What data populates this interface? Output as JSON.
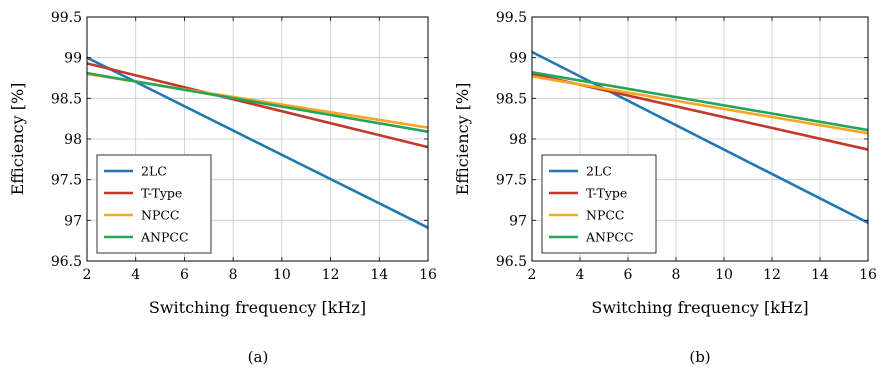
{
  "chart_data": [
    {
      "type": "line",
      "caption": "(a)",
      "xlabel": "Switching frequency [kHz]",
      "ylabel": "Efficiency [%]",
      "xlim": [
        2,
        16
      ],
      "ylim": [
        96.5,
        99.5
      ],
      "xticks": [
        2,
        4,
        6,
        8,
        10,
        12,
        14,
        16
      ],
      "yticks": [
        96.5,
        97,
        97.5,
        98,
        98.5,
        99,
        99.5
      ],
      "ytick_labels": [
        "96.5",
        "97",
        "97.5",
        "98",
        "98.5",
        "99",
        "99.5"
      ],
      "grid": true,
      "legend": "bottom-left",
      "series": [
        {
          "name": "2LC",
          "color": "#1f77b4",
          "x": [
            2,
            16
          ],
          "y": [
            99.0,
            96.91
          ]
        },
        {
          "name": "T-Type",
          "color": "#c0392b",
          "x": [
            2,
            16
          ],
          "y": [
            98.93,
            97.9
          ]
        },
        {
          "name": "NPCC",
          "color": "#f5a623",
          "x": [
            2,
            16
          ],
          "y": [
            98.8,
            98.14
          ]
        },
        {
          "name": "ANPCC",
          "color": "#27a35a",
          "x": [
            2,
            16
          ],
          "y": [
            98.81,
            98.09
          ]
        }
      ]
    },
    {
      "type": "line",
      "caption": "(b)",
      "xlabel": "Switching frequency [kHz]",
      "ylabel": "Efficiency [%]",
      "xlim": [
        2,
        16
      ],
      "ylim": [
        96.5,
        99.5
      ],
      "xticks": [
        2,
        4,
        6,
        8,
        10,
        12,
        14,
        16
      ],
      "yticks": [
        96.5,
        97,
        97.5,
        98,
        98.5,
        99,
        99.5
      ],
      "ytick_labels": [
        "96.5",
        "97",
        "97.5",
        "98",
        "98.5",
        "99",
        "99.5"
      ],
      "grid": true,
      "legend": "bottom-left",
      "series": [
        {
          "name": "2LC",
          "color": "#1f77b4",
          "x": [
            2,
            16
          ],
          "y": [
            99.07,
            96.97
          ]
        },
        {
          "name": "T-Type",
          "color": "#c0392b",
          "x": [
            2,
            16
          ],
          "y": [
            98.8,
            97.87
          ]
        },
        {
          "name": "NPCC",
          "color": "#f5a623",
          "x": [
            2,
            16
          ],
          "y": [
            98.77,
            98.07
          ]
        },
        {
          "name": "ANPCC",
          "color": "#27a35a",
          "x": [
            2,
            16
          ],
          "y": [
            98.82,
            98.11
          ]
        }
      ]
    }
  ]
}
